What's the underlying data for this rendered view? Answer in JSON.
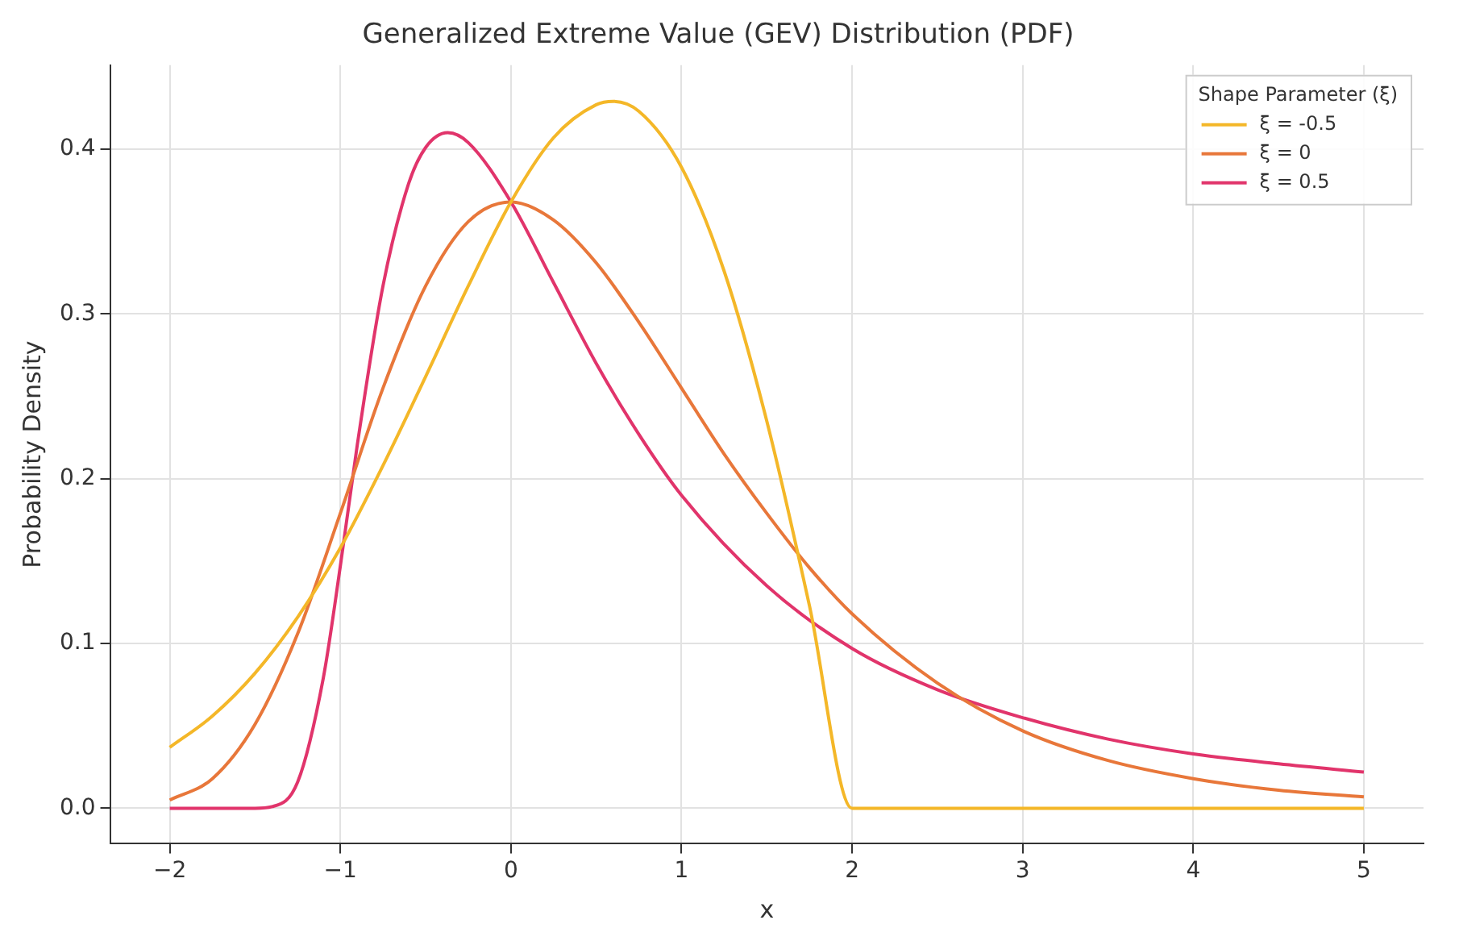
{
  "chart_data": {
    "type": "line",
    "title": "Generalized Extreme Value (GEV) Distribution (PDF)",
    "xlabel": "x",
    "ylabel": "Probability Density",
    "legend_title": "Shape Parameter (ξ)",
    "series": [
      {
        "name": "ξ = -0.5",
        "color": "#f4b728",
        "x": [
          -2,
          -1.75,
          -1.5,
          -1.25,
          -1,
          -0.75,
          -0.5,
          -0.25,
          0,
          0.25,
          0.5,
          0.6,
          0.75,
          1,
          1.25,
          1.5,
          1.75,
          2,
          3,
          4,
          5
        ],
        "values": [
          0.037,
          0.056,
          0.082,
          0.116,
          0.158,
          0.208,
          0.262,
          0.317,
          0.368,
          0.407,
          0.427,
          0.429,
          0.423,
          0.389,
          0.326,
          0.235,
          0.123,
          0,
          0,
          0,
          0
        ]
      },
      {
        "name": "ξ = 0",
        "color": "#e8773a",
        "x": [
          -2,
          -1.75,
          -1.5,
          -1.25,
          -1,
          -0.75,
          -0.5,
          -0.25,
          0,
          0.25,
          0.5,
          0.75,
          1,
          1.25,
          1.5,
          1.75,
          2,
          2.5,
          3,
          3.5,
          4,
          4.5,
          5
        ],
        "values": [
          0.005,
          0.018,
          0.051,
          0.106,
          0.179,
          0.255,
          0.317,
          0.356,
          0.368,
          0.357,
          0.331,
          0.295,
          0.255,
          0.215,
          0.179,
          0.146,
          0.118,
          0.076,
          0.047,
          0.029,
          0.018,
          0.011,
          0.007
        ]
      },
      {
        "name": "ξ = 0.5",
        "color": "#e1346b",
        "x": [
          -2,
          -1.75,
          -1.5,
          -1.4,
          -1.25,
          -1.1,
          -1,
          -0.9,
          -0.75,
          -0.6,
          -0.5,
          -0.37,
          -0.25,
          0,
          0.25,
          0.5,
          0.75,
          1,
          1.5,
          2,
          2.5,
          3,
          3.5,
          4,
          4.5,
          5
        ],
        "values": [
          0,
          0,
          0,
          0.001,
          0.016,
          0.079,
          0.147,
          0.221,
          0.317,
          0.379,
          0.401,
          0.41,
          0.404,
          0.368,
          0.319,
          0.27,
          0.227,
          0.19,
          0.135,
          0.097,
          0.072,
          0.055,
          0.042,
          0.033,
          0.027,
          0.022
        ]
      }
    ],
    "xlim": [
      -2.35,
      5.35
    ],
    "xticks": [
      {
        "value": -2,
        "label": "−2"
      },
      {
        "value": -1,
        "label": "−1"
      },
      0,
      1,
      2,
      3,
      4,
      5
    ],
    "ylim": [
      -0.0215,
      0.451
    ],
    "yticks": [
      {
        "value": 0,
        "label": "0.0"
      },
      0.1,
      0.2,
      0.3,
      0.4
    ],
    "grid": true,
    "legend": "top right",
    "line_style": "solid",
    "marker": "none"
  }
}
